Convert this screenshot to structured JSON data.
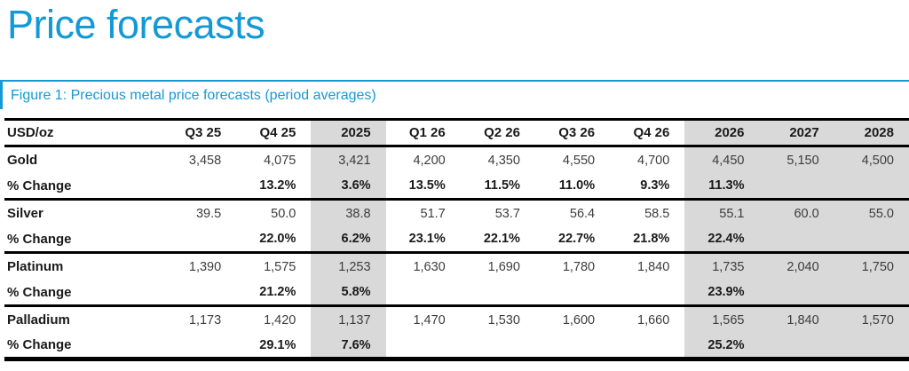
{
  "page": {
    "title": "Price forecasts",
    "accent_color": "#1499d6"
  },
  "figure": {
    "caption": "Figure 1: Precious metal price forecasts (period averages)"
  },
  "table": {
    "unit_header": "USD/oz",
    "shade_color": "#d9d9d9",
    "columns": [
      {
        "label": "Q3 25",
        "shaded": false
      },
      {
        "label": "Q4 25",
        "shaded": false
      },
      {
        "label": "2025",
        "shaded": true
      },
      {
        "label": "Q1 26",
        "shaded": false
      },
      {
        "label": "Q2 26",
        "shaded": false
      },
      {
        "label": "Q3 26",
        "shaded": false
      },
      {
        "label": "Q4 26",
        "shaded": false
      },
      {
        "label": "2026",
        "shaded": true
      },
      {
        "label": "2027",
        "shaded": true
      },
      {
        "label": "2028",
        "shaded": true
      }
    ],
    "rows": [
      {
        "label": "Gold",
        "type": "price",
        "values": [
          "3,458",
          "4,075",
          "3,421",
          "4,200",
          "4,350",
          "4,550",
          "4,700",
          "4,450",
          "5,150",
          "4,500"
        ]
      },
      {
        "label": "% Change",
        "type": "pct",
        "values": [
          "",
          "13.2%",
          "3.6%",
          "13.5%",
          "11.5%",
          "11.0%",
          "9.3%",
          "11.3%",
          "",
          ""
        ]
      },
      {
        "label": "Silver",
        "type": "price",
        "values": [
          "39.5",
          "50.0",
          "38.8",
          "51.7",
          "53.7",
          "56.4",
          "58.5",
          "55.1",
          "60.0",
          "55.0"
        ]
      },
      {
        "label": "% Change",
        "type": "pct",
        "values": [
          "",
          "22.0%",
          "6.2%",
          "23.1%",
          "22.1%",
          "22.7%",
          "21.8%",
          "22.4%",
          "",
          ""
        ]
      },
      {
        "label": "Platinum",
        "type": "price",
        "values": [
          "1,390",
          "1,575",
          "1,253",
          "1,630",
          "1,690",
          "1,780",
          "1,840",
          "1,735",
          "2,040",
          "1,750"
        ]
      },
      {
        "label": "% Change",
        "type": "pct",
        "values": [
          "",
          "21.2%",
          "5.8%",
          "",
          "",
          "",
          "",
          "23.9%",
          "",
          ""
        ]
      },
      {
        "label": "Palladium",
        "type": "price",
        "values": [
          "1,173",
          "1,420",
          "1,137",
          "1,470",
          "1,530",
          "1,600",
          "1,660",
          "1,565",
          "1,840",
          "1,570"
        ]
      },
      {
        "label": "% Change",
        "type": "pct",
        "values": [
          "",
          "29.1%",
          "7.6%",
          "",
          "",
          "",
          "",
          "25.2%",
          "",
          ""
        ]
      }
    ]
  }
}
